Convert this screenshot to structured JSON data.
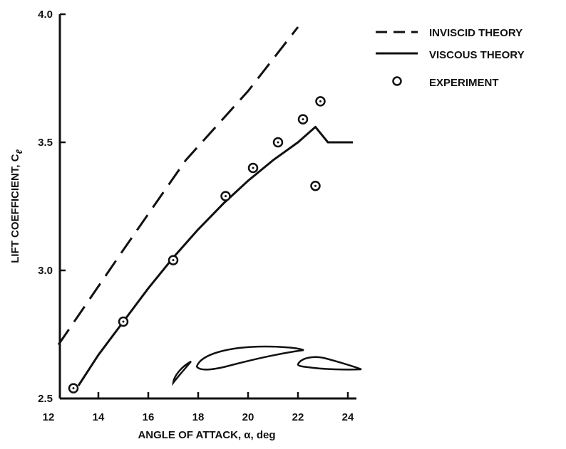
{
  "chart_data": {
    "type": "line",
    "xlabel": "ANGLE OF ATTACK, α, deg",
    "ylabel": "LIFT COEFFICIENT, C",
    "ylabel_subscript": "ℓ",
    "xlim": [
      12,
      24.5
    ],
    "ylim": [
      2.5,
      4.0
    ],
    "x_ticks": [
      "12",
      "14",
      "16",
      "18",
      "20",
      "22",
      "24"
    ],
    "y_ticks": [
      "2.5",
      "3.0",
      "3.5",
      "4.0"
    ],
    "legend_position": "top-right",
    "series": [
      {
        "name": "INVISCID THEORY",
        "style": "dashed",
        "points": [
          [
            12.4,
            2.71
          ],
          [
            15.0,
            3.08
          ],
          [
            17.5,
            3.43
          ],
          [
            20.0,
            3.7
          ],
          [
            22.0,
            3.95
          ]
        ]
      },
      {
        "name": "VISCOUS THEORY",
        "style": "solid",
        "points": [
          [
            13.2,
            2.55
          ],
          [
            14.0,
            2.67
          ],
          [
            15.0,
            2.8
          ],
          [
            16.0,
            2.93
          ],
          [
            17.0,
            3.05
          ],
          [
            18.0,
            3.16
          ],
          [
            19.0,
            3.26
          ],
          [
            20.0,
            3.35
          ],
          [
            21.0,
            3.43
          ],
          [
            22.0,
            3.5
          ],
          [
            22.7,
            3.56
          ],
          [
            23.2,
            3.5
          ],
          [
            24.2,
            3.5
          ]
        ]
      },
      {
        "name": "EXPERIMENT",
        "style": "markers",
        "points": [
          [
            13.0,
            2.54
          ],
          [
            15.0,
            2.8
          ],
          [
            17.0,
            3.04
          ],
          [
            19.1,
            3.29
          ],
          [
            20.2,
            3.4
          ],
          [
            21.2,
            3.5
          ],
          [
            22.2,
            3.59
          ],
          [
            22.9,
            3.66
          ],
          [
            22.7,
            3.33
          ]
        ]
      }
    ]
  }
}
